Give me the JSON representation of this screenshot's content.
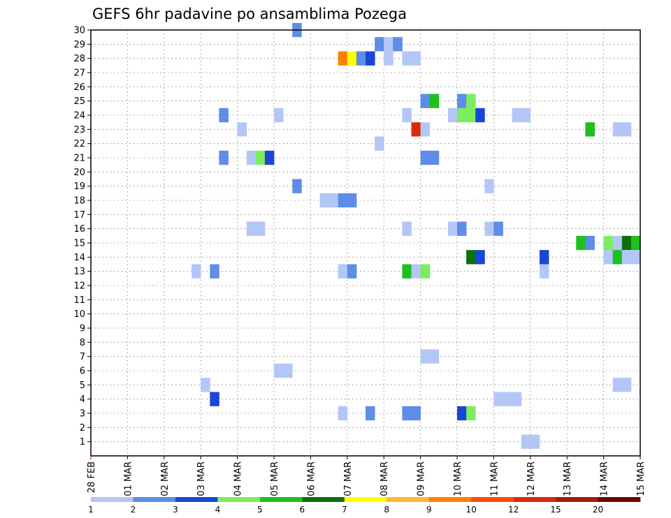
{
  "chart_data": {
    "type": "heatmap",
    "title": "GEFS 6hr padavine po ansamblima Pozega",
    "xlabel": "",
    "ylabel": "",
    "y_ticks": [
      "1",
      "2",
      "3",
      "4",
      "5",
      "6",
      "7",
      "8",
      "9",
      "10",
      "11",
      "12",
      "13",
      "14",
      "15",
      "16",
      "17",
      "18",
      "19",
      "20",
      "21",
      "22",
      "23",
      "24",
      "25",
      "26",
      "27",
      "28",
      "29",
      "30"
    ],
    "ylim": [
      0,
      30
    ],
    "x_ticks": [
      "28 FEB",
      "01 MAR",
      "02 MAR",
      "03 MAR",
      "04 MAR",
      "05 MAR",
      "06 MAR",
      "07 MAR",
      "08 MAR",
      "09 MAR",
      "10 MAR",
      "11 MAR",
      "12 MAR",
      "13 MAR",
      "14 MAR",
      "15 MAR"
    ],
    "x_step": "6hr",
    "xlim_steps": [
      0,
      60
    ],
    "grid": true,
    "legend": {
      "placement": "bottom",
      "labels": [
        "1",
        "2",
        "3",
        "4",
        "5",
        "6",
        "7",
        "8",
        "9",
        "10",
        "12",
        "15",
        "20"
      ],
      "colors": [
        "#b3c7f7",
        "#5d8de8",
        "#1946d6",
        "#7ded5e",
        "#1fbf1f",
        "#0c700c",
        "#ffff00",
        "#ffb833",
        "#ff7f00",
        "#ff4d00",
        "#d92b0b",
        "#a31a0a",
        "#6b0404"
      ]
    },
    "cells": [
      {
        "member": 30,
        "step": 23,
        "value": 2
      },
      {
        "member": 29,
        "step": 32,
        "value": 2
      },
      {
        "member": 29,
        "step": 33,
        "value": 1
      },
      {
        "member": 29,
        "step": 34,
        "value": 2
      },
      {
        "member": 28,
        "step": 28,
        "value": 9
      },
      {
        "member": 28,
        "step": 29,
        "value": 7
      },
      {
        "member": 28,
        "step": 30,
        "value": 2
      },
      {
        "member": 28,
        "step": 31,
        "value": 3
      },
      {
        "member": 28,
        "step": 33,
        "value": 1
      },
      {
        "member": 28,
        "step": 35,
        "value": 1
      },
      {
        "member": 28,
        "step": 36,
        "value": 1
      },
      {
        "member": 25,
        "step": 37,
        "value": 2
      },
      {
        "member": 25,
        "step": 38,
        "value": 5
      },
      {
        "member": 25,
        "step": 41,
        "value": 2
      },
      {
        "member": 25,
        "step": 42,
        "value": 4
      },
      {
        "member": 24,
        "step": 15,
        "value": 2
      },
      {
        "member": 24,
        "step": 21,
        "value": 1
      },
      {
        "member": 24,
        "step": 35,
        "value": 1
      },
      {
        "member": 24,
        "step": 40,
        "value": 1
      },
      {
        "member": 24,
        "step": 41,
        "value": 4
      },
      {
        "member": 24,
        "step": 42,
        "value": 4
      },
      {
        "member": 24,
        "step": 43,
        "value": 3
      },
      {
        "member": 24,
        "step": 47,
        "value": 1
      },
      {
        "member": 24,
        "step": 48,
        "value": 1
      },
      {
        "member": 23,
        "step": 17,
        "value": 1
      },
      {
        "member": 23,
        "step": 36,
        "value": 13
      },
      {
        "member": 23,
        "step": 37,
        "value": 1
      },
      {
        "member": 23,
        "step": 55,
        "value": 5
      },
      {
        "member": 23,
        "step": 58,
        "value": 1
      },
      {
        "member": 23,
        "step": 59,
        "value": 1
      },
      {
        "member": 22,
        "step": 32,
        "value": 1
      },
      {
        "member": 21,
        "step": 15,
        "value": 2
      },
      {
        "member": 21,
        "step": 18,
        "value": 1
      },
      {
        "member": 21,
        "step": 19,
        "value": 4
      },
      {
        "member": 21,
        "step": 20,
        "value": 3
      },
      {
        "member": 21,
        "step": 37,
        "value": 2
      },
      {
        "member": 21,
        "step": 38,
        "value": 2
      },
      {
        "member": 19,
        "step": 23,
        "value": 2
      },
      {
        "member": 19,
        "step": 44,
        "value": 1
      },
      {
        "member": 18,
        "step": 26,
        "value": 1
      },
      {
        "member": 18,
        "step": 27,
        "value": 1
      },
      {
        "member": 18,
        "step": 28,
        "value": 2
      },
      {
        "member": 18,
        "step": 29,
        "value": 2
      },
      {
        "member": 16,
        "step": 18,
        "value": 1
      },
      {
        "member": 16,
        "step": 19,
        "value": 1
      },
      {
        "member": 16,
        "step": 35,
        "value": 1
      },
      {
        "member": 16,
        "step": 40,
        "value": 1
      },
      {
        "member": 16,
        "step": 41,
        "value": 2
      },
      {
        "member": 16,
        "step": 44,
        "value": 1
      },
      {
        "member": 16,
        "step": 45,
        "value": 2
      },
      {
        "member": 15,
        "step": 54,
        "value": 5
      },
      {
        "member": 15,
        "step": 55,
        "value": 2
      },
      {
        "member": 15,
        "step": 57,
        "value": 4
      },
      {
        "member": 15,
        "step": 58,
        "value": 1
      },
      {
        "member": 15,
        "step": 59,
        "value": 6
      },
      {
        "member": 15,
        "step": 60,
        "value": 5
      },
      {
        "member": 14,
        "step": 42,
        "value": 6
      },
      {
        "member": 14,
        "step": 43,
        "value": 3
      },
      {
        "member": 14,
        "step": 50,
        "value": 3
      },
      {
        "member": 14,
        "step": 57,
        "value": 1
      },
      {
        "member": 14,
        "step": 58,
        "value": 5
      },
      {
        "member": 14,
        "step": 59,
        "value": 1
      },
      {
        "member": 14,
        "step": 60,
        "value": 1
      },
      {
        "member": 13,
        "step": 12,
        "value": 1
      },
      {
        "member": 13,
        "step": 14,
        "value": 2
      },
      {
        "member": 13,
        "step": 28,
        "value": 1
      },
      {
        "member": 13,
        "step": 29,
        "value": 2
      },
      {
        "member": 13,
        "step": 35,
        "value": 5
      },
      {
        "member": 13,
        "step": 36,
        "value": 1
      },
      {
        "member": 13,
        "step": 37,
        "value": 4
      },
      {
        "member": 13,
        "step": 50,
        "value": 1
      },
      {
        "member": 7,
        "step": 37,
        "value": 1
      },
      {
        "member": 7,
        "step": 38,
        "value": 1
      },
      {
        "member": 6,
        "step": 21,
        "value": 1
      },
      {
        "member": 6,
        "step": 22,
        "value": 1
      },
      {
        "member": 5,
        "step": 13,
        "value": 1
      },
      {
        "member": 5,
        "step": 58,
        "value": 1
      },
      {
        "member": 5,
        "step": 59,
        "value": 1
      },
      {
        "member": 4,
        "step": 14,
        "value": 3
      },
      {
        "member": 4,
        "step": 45,
        "value": 1
      },
      {
        "member": 4,
        "step": 46,
        "value": 1
      },
      {
        "member": 4,
        "step": 47,
        "value": 1
      },
      {
        "member": 3,
        "step": 28,
        "value": 1
      },
      {
        "member": 3,
        "step": 31,
        "value": 2
      },
      {
        "member": 3,
        "step": 35,
        "value": 2
      },
      {
        "member": 3,
        "step": 36,
        "value": 2
      },
      {
        "member": 3,
        "step": 41,
        "value": 3
      },
      {
        "member": 3,
        "step": 42,
        "value": 4
      },
      {
        "member": 1,
        "step": 48,
        "value": 1
      },
      {
        "member": 1,
        "step": 49,
        "value": 1
      }
    ]
  }
}
